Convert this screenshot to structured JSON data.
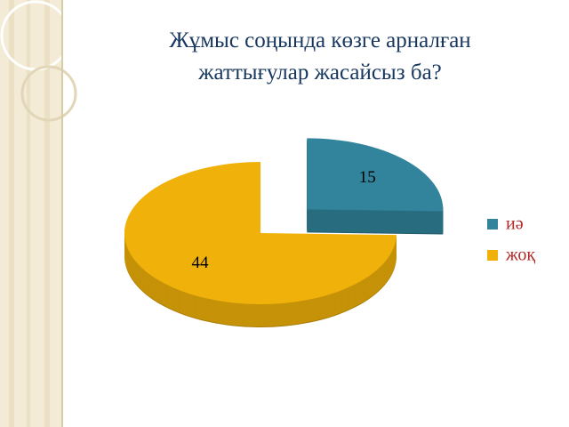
{
  "chart_data": {
    "type": "pie",
    "title": "Жұмыс соңында көзге арналған жаттығулар жасайсыз ба?",
    "categories": [
      "иә",
      "жоқ"
    ],
    "values": [
      15,
      44
    ],
    "colors": [
      "#31849b",
      "#f0b20a"
    ],
    "exploded": [
      true,
      false
    ]
  }
}
